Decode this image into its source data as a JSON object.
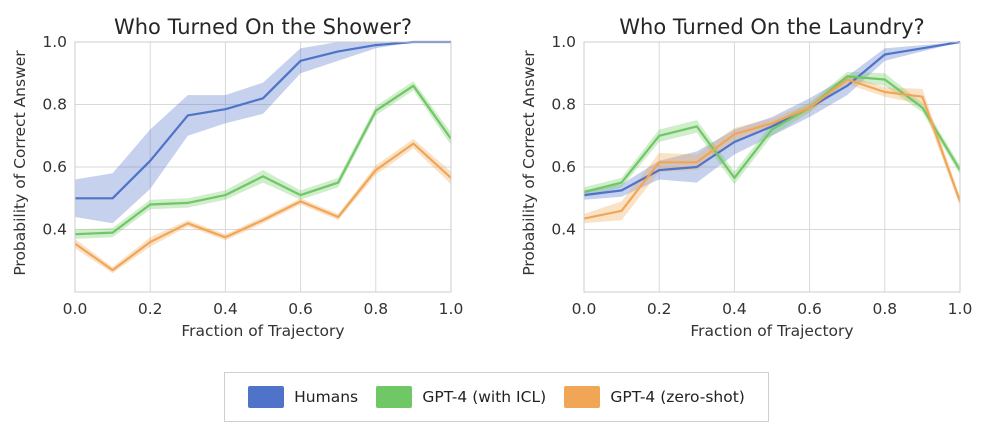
{
  "legend": {
    "items": [
      {
        "label": "Humans",
        "color": "#4e73c9"
      },
      {
        "label": "GPT-4 (with ICL)",
        "color": "#6fc765"
      },
      {
        "label": "GPT-4 (zero-shot)",
        "color": "#f0a656"
      }
    ]
  },
  "chart_data": [
    {
      "type": "line",
      "title": "Who Turned On the Shower?",
      "xlabel": "Fraction of Trajectory",
      "ylabel": "Probability of Correct Answer",
      "xlim": [
        0,
        1
      ],
      "ylim": [
        0.2,
        1.0
      ],
      "xticks": [
        "0.0",
        "0.2",
        "0.4",
        "0.6",
        "0.8",
        "1.0"
      ],
      "yticks": [
        "0.4",
        "0.6",
        "0.8",
        "1.0"
      ],
      "grid": true,
      "x": [
        0.0,
        0.1,
        0.2,
        0.3,
        0.4,
        0.5,
        0.6,
        0.7,
        0.8,
        0.9,
        1.0
      ],
      "series": [
        {
          "name": "Humans",
          "color": "#4e73c9",
          "values": [
            0.5,
            0.5,
            0.62,
            0.765,
            0.785,
            0.82,
            0.94,
            0.97,
            0.99,
            1.0,
            1.0
          ],
          "lower": [
            0.44,
            0.42,
            0.53,
            0.7,
            0.74,
            0.77,
            0.9,
            0.94,
            0.98,
            1.0,
            1.0
          ],
          "upper": [
            0.56,
            0.58,
            0.72,
            0.83,
            0.83,
            0.87,
            0.98,
            1.0,
            1.0,
            1.0,
            1.0
          ]
        },
        {
          "name": "GPT-4 (with ICL)",
          "color": "#6fc765",
          "values": [
            0.385,
            0.39,
            0.48,
            0.485,
            0.51,
            0.57,
            0.51,
            0.55,
            0.78,
            0.86,
            0.69
          ],
          "lower": [
            0.37,
            0.375,
            0.465,
            0.47,
            0.495,
            0.55,
            0.495,
            0.535,
            0.765,
            0.845,
            0.67
          ],
          "upper": [
            0.4,
            0.405,
            0.495,
            0.5,
            0.525,
            0.59,
            0.525,
            0.565,
            0.795,
            0.875,
            0.71
          ]
        },
        {
          "name": "GPT-4 (zero-shot)",
          "color": "#f0a656",
          "values": [
            0.355,
            0.27,
            0.36,
            0.42,
            0.375,
            0.43,
            0.49,
            0.44,
            0.59,
            0.675,
            0.565
          ],
          "lower": [
            0.34,
            0.26,
            0.345,
            0.41,
            0.365,
            0.42,
            0.48,
            0.43,
            0.575,
            0.66,
            0.545
          ],
          "upper": [
            0.37,
            0.28,
            0.375,
            0.43,
            0.385,
            0.44,
            0.5,
            0.45,
            0.605,
            0.69,
            0.585
          ]
        }
      ]
    },
    {
      "type": "line",
      "title": "Who Turned On the Laundry?",
      "xlabel": "Fraction of Trajectory",
      "ylabel": "Probability of Correct Answer",
      "xlim": [
        0,
        1
      ],
      "ylim": [
        0.2,
        1.0
      ],
      "xticks": [
        "0.0",
        "0.2",
        "0.4",
        "0.6",
        "0.8",
        "1.0"
      ],
      "yticks": [
        "0.4",
        "0.6",
        "0.8",
        "1.0"
      ],
      "grid": true,
      "x": [
        0.0,
        0.1,
        0.2,
        0.3,
        0.4,
        0.5,
        0.6,
        0.7,
        0.8,
        0.9,
        1.0
      ],
      "series": [
        {
          "name": "Humans",
          "color": "#4e73c9",
          "values": [
            0.51,
            0.525,
            0.59,
            0.6,
            0.68,
            0.73,
            0.79,
            0.86,
            0.96,
            0.98,
            1.0
          ],
          "lower": [
            0.495,
            0.505,
            0.56,
            0.55,
            0.64,
            0.7,
            0.76,
            0.83,
            0.94,
            0.97,
            1.0
          ],
          "upper": [
            0.525,
            0.545,
            0.62,
            0.65,
            0.72,
            0.76,
            0.82,
            0.89,
            0.98,
            0.99,
            1.0
          ]
        },
        {
          "name": "GPT-4 (with ICL)",
          "color": "#6fc765",
          "values": [
            0.52,
            0.55,
            0.7,
            0.73,
            0.565,
            0.72,
            0.79,
            0.89,
            0.88,
            0.79,
            0.59
          ],
          "lower": [
            0.505,
            0.535,
            0.68,
            0.71,
            0.545,
            0.7,
            0.775,
            0.875,
            0.86,
            0.775,
            0.575
          ],
          "upper": [
            0.535,
            0.565,
            0.72,
            0.75,
            0.585,
            0.74,
            0.805,
            0.905,
            0.9,
            0.805,
            0.605
          ]
        },
        {
          "name": "GPT-4 (zero-shot)",
          "color": "#f0a656",
          "values": [
            0.435,
            0.46,
            0.615,
            0.615,
            0.705,
            0.74,
            0.79,
            0.88,
            0.84,
            0.825,
            0.49
          ],
          "lower": [
            0.42,
            0.43,
            0.585,
            0.59,
            0.685,
            0.725,
            0.775,
            0.865,
            0.825,
            0.8,
            0.475
          ],
          "upper": [
            0.45,
            0.49,
            0.645,
            0.64,
            0.725,
            0.755,
            0.805,
            0.895,
            0.855,
            0.85,
            0.505
          ]
        }
      ]
    }
  ]
}
